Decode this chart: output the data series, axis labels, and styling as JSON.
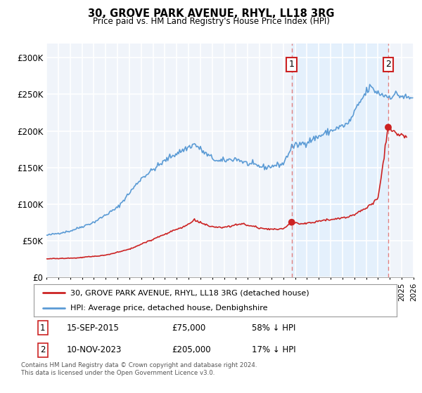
{
  "title": "30, GROVE PARK AVENUE, RHYL, LL18 3RG",
  "subtitle": "Price paid vs. HM Land Registry's House Price Index (HPI)",
  "xlim_start": 1995.0,
  "xlim_end": 2026.0,
  "ylim": [
    0,
    320000
  ],
  "yticks": [
    0,
    50000,
    100000,
    150000,
    200000,
    250000,
    300000
  ],
  "hpi_color": "#5b9bd5",
  "price_color": "#cc2222",
  "dashed_color": "#e08080",
  "shade_color": "#ddeeff",
  "marker1_year": 2015.71,
  "marker1_price": 75000,
  "marker2_year": 2023.86,
  "marker2_price": 205000,
  "marker1_label": "15-SEP-2015",
  "marker1_value": "£75,000",
  "marker1_hpi": "58% ↓ HPI",
  "marker2_label": "10-NOV-2023",
  "marker2_value": "£205,000",
  "marker2_hpi": "17% ↓ HPI",
  "legend1": "30, GROVE PARK AVENUE, RHYL, LL18 3RG (detached house)",
  "legend2": "HPI: Average price, detached house, Denbighshire",
  "footnote": "Contains HM Land Registry data © Crown copyright and database right 2024.\nThis data is licensed under the Open Government Licence v3.0.",
  "background_color": "#f0f4fa",
  "grid_color": "#ffffff"
}
